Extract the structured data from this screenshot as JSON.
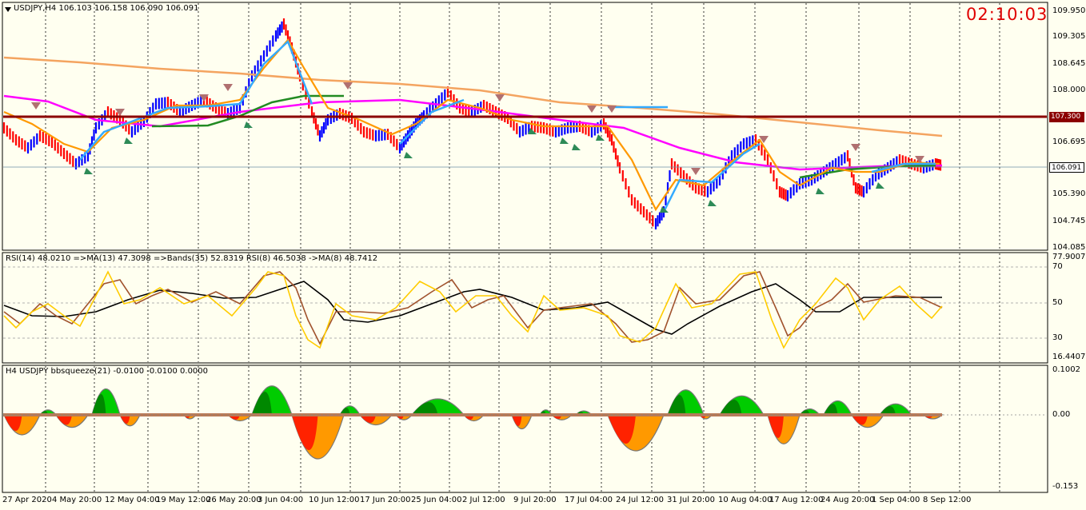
{
  "main_header": {
    "symbol": "USDJPY,H4",
    "ohlc": "106.103 106.158 106.090 106.091"
  },
  "timer": "02:10:03",
  "price_axis": [
    "109.950",
    "109.305",
    "108.645",
    "108.000",
    "106.695",
    "105.390",
    "104.745",
    "104.085"
  ],
  "price_boxes": {
    "level": {
      "label": "107.300",
      "bg": "#8b0000",
      "fg": "#ffffff"
    },
    "current": {
      "label": "106.091",
      "bg": "#ffffff",
      "fg": "#000000"
    }
  },
  "rsi_header": "RSI(14) 48.0210  =>MA(13) 47.3098  =>Bands(35) 52.8319  RSI(8) 46.5038  ->MA(8) 48.7412",
  "rsi_axis": [
    "77.9007",
    "70",
    "50",
    "30",
    "16.4407"
  ],
  "squeeze_header": "H4 USDJPY bbsqueeze(21) -0.0100 -0.0100 0.0000",
  "squeeze_axis": [
    "0.1002",
    "0.00",
    "-0.153"
  ],
  "date_axis": [
    "27 Apr 2020",
    "4 May 20:00",
    "12 May 04:00",
    "19 May 12:00",
    "26 May 20:00",
    "3 Jun 04:00",
    "10 Jun 12:00",
    "17 Jun 20:00",
    "25 Jun 04:00",
    "2 Jul 12:00",
    "9 Jul 20:00",
    "17 Jul 04:00",
    "24 Jul 12:00",
    "31 Jul 20:00",
    "10 Aug 04:00",
    "17 Aug 12:00",
    "24 Aug 20:00",
    "1 Sep 04:00",
    "8 Sep 12:00"
  ],
  "colors": {
    "bull": "#0000ff",
    "bear": "#ff0000",
    "ma_slow": "#f4a460",
    "ma_mid": "#ff00ff",
    "ma_green": "#228b22",
    "ma_orange": "#ff9900",
    "ma_cyan": "#33aaff",
    "level": "#8b0000",
    "rsi_black": "#000000",
    "rsi_brown": "#a0522d",
    "rsi_gold": "#ffcc00",
    "sq_green": "#00cc00",
    "sq_dgreen": "#008800",
    "sq_red": "#ff2200",
    "sq_orange": "#ff9900"
  }
}
